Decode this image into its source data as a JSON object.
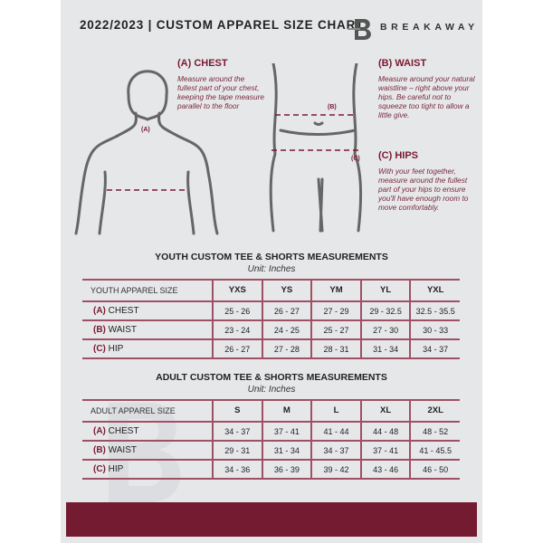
{
  "header": {
    "title": "2022/2023  |  CUSTOM APPAREL SIZE CHART",
    "brand": "BREAKAWAY",
    "logo_letter": "B"
  },
  "guide": {
    "chest": {
      "heading": "(A) CHEST",
      "text": "Measure around the fullest part of your chest, keeping the tape measure parallel to the floor",
      "marker": "(A)"
    },
    "waist": {
      "heading": "(B) WAIST",
      "text": "Measure around your natural waistline – right above your hips. Be careful not to squeeze too tight to allow a little give.",
      "marker": "(B)"
    },
    "hips": {
      "heading": "(C) HIPS",
      "text": "With your feet together, measure around the fullest part of your hips to ensure you'll have enough room to move comfortably.",
      "marker": "(C)"
    }
  },
  "youth": {
    "title": "YOUTH CUSTOM TEE & SHORTS MEASUREMENTS",
    "unit": "Unit: Inches",
    "header": [
      "YOUTH APPAREL SIZE",
      "YXS",
      "YS",
      "YM",
      "YL",
      "YXL"
    ],
    "rows": [
      {
        "letter": "(A)",
        "label": "CHEST",
        "values": [
          "25 - 26",
          "26 - 27",
          "27 - 29",
          "29 - 32.5",
          "32.5 - 35.5"
        ]
      },
      {
        "letter": "(B)",
        "label": "WAIST",
        "values": [
          "23 - 24",
          "24 - 25",
          "25 - 27",
          "27 - 30",
          "30 - 33"
        ]
      },
      {
        "letter": "(C)",
        "label": "HIP",
        "values": [
          "26 - 27",
          "27 - 28",
          "28 - 31",
          "31 - 34",
          "34 - 37"
        ]
      }
    ]
  },
  "adult": {
    "title": "ADULT CUSTOM TEE & SHORTS MEASUREMENTS",
    "unit": "Unit: Inches",
    "header": [
      "ADULT APPAREL SIZE",
      "S",
      "M",
      "L",
      "XL",
      "2XL"
    ],
    "rows": [
      {
        "letter": "(A)",
        "label": "CHEST",
        "values": [
          "34 - 37",
          "37 - 41",
          "41 - 44",
          "44 - 48",
          "48 - 52"
        ]
      },
      {
        "letter": "(B)",
        "label": "WAIST",
        "values": [
          "29 - 31",
          "31 - 34",
          "34 - 37",
          "37 - 41",
          "41 - 45.5"
        ]
      },
      {
        "letter": "(C)",
        "label": "HIP",
        "values": [
          "34 - 36",
          "36 - 39",
          "39 - 42",
          "43 - 46",
          "46 - 50"
        ]
      }
    ]
  },
  "colors": {
    "accent": "#741b31",
    "background": "#e6e7e9"
  }
}
